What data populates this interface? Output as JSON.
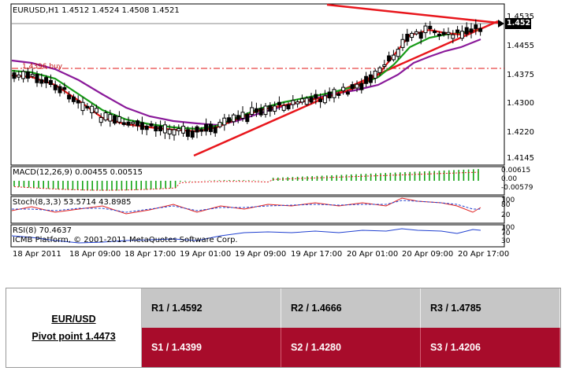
{
  "chart": {
    "symbol_line": "EURUSD,H1  1.4512 1.4524 1.4508 1.4521",
    "current_price": "1.4521",
    "price_ticks": [
      "1.4535",
      "1.4455",
      "1.4375",
      "1.4300",
      "1.4220",
      "1.4145"
    ],
    "support_label": "1.4396 buy",
    "macd_label": "MACD(12,26,9) 0.00455 0.00515",
    "macd_ticks": [
      "0.00615",
      "0.00",
      "-0.00579"
    ],
    "stoch_label": "Stoch(8,3,3) 53.5714 43.8985",
    "stoch_ticks": [
      "100",
      "80",
      "20"
    ],
    "rsi_label": "RSI(8) 70.4637",
    "rsi_ticks": [
      "100",
      "70",
      "30"
    ],
    "copyright": "ICMB Platform, © 2001-2011 MetaQuotes Software Corp.",
    "time_labels": [
      "18 Apr 2011",
      "18 Apr 09:00",
      "18 Apr 17:00",
      "19 Apr 01:00",
      "19 Apr 09:00",
      "19 Apr 17:00",
      "20 Apr 01:00",
      "20 Apr 09:00",
      "20 Apr 17:00"
    ],
    "colors": {
      "trend": "#e8161c",
      "ma_fast": "#e01414",
      "ma_mid": "#169a16",
      "ma_slow": "#8a1a9a",
      "macd_bar": "#13a313",
      "signal": "#e02020"
    }
  },
  "pivot": {
    "pair": "EUR/USD",
    "pivot_point": "Pivot point 1.4473",
    "resistances": [
      "R1 / 1.4592",
      "R2 / 1.4666",
      "R3 / 1.4785"
    ],
    "supports": [
      "S1 / 1.4399",
      "S2 / 1.4280",
      "S3 / 1.4206"
    ],
    "colors": {
      "resistance_bg": "#c6c6c6",
      "support_bg": "#a80c2b"
    }
  }
}
